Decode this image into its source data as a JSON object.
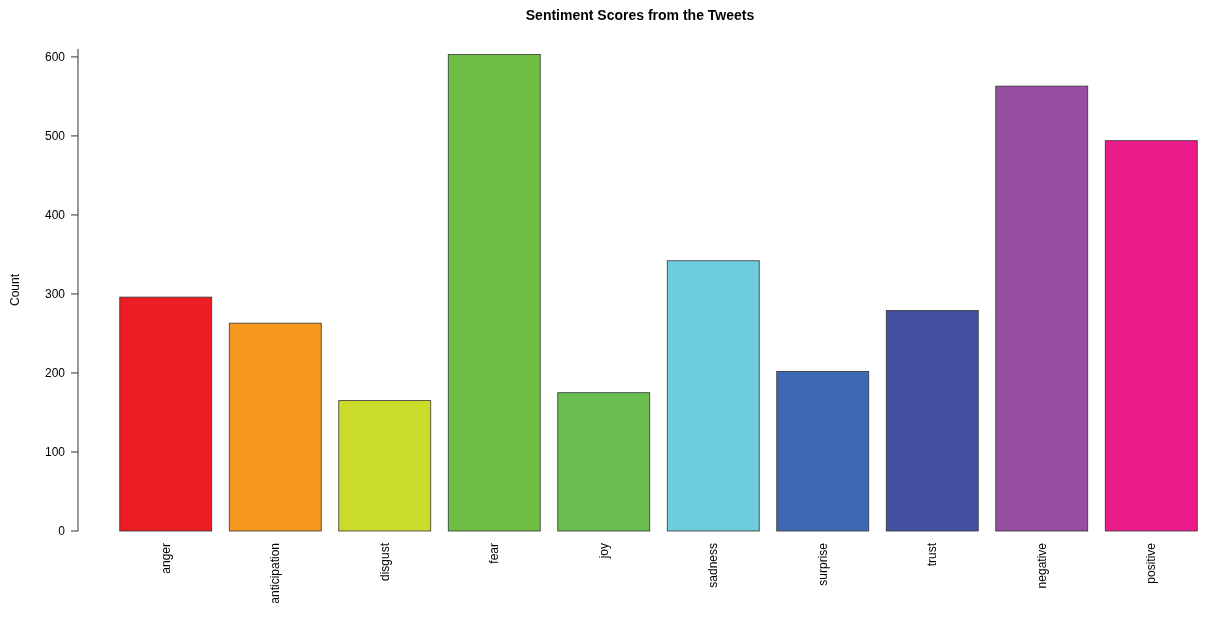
{
  "chart_data": {
    "type": "bar",
    "title": "Sentiment Scores from the Tweets",
    "ylabel": "Count",
    "categories": [
      "anger",
      "anticipation",
      "disgust",
      "fear",
      "joy",
      "sadness",
      "surprise",
      "trust",
      "negative",
      "positive"
    ],
    "values": [
      296,
      263,
      165,
      603,
      175,
      342,
      202,
      279,
      563,
      494
    ],
    "colors": [
      "#ec1e24",
      "#f6981e",
      "#cadb2a",
      "#6fbe44",
      "#6abd4f",
      "#6dcddc",
      "#3c69b1",
      "#4550a2",
      "#964fa0",
      "#ec1b8c"
    ],
    "ylim": [
      0,
      610
    ],
    "yticks": [
      0,
      100,
      200,
      300,
      400,
      500,
      600
    ],
    "grid": false
  }
}
